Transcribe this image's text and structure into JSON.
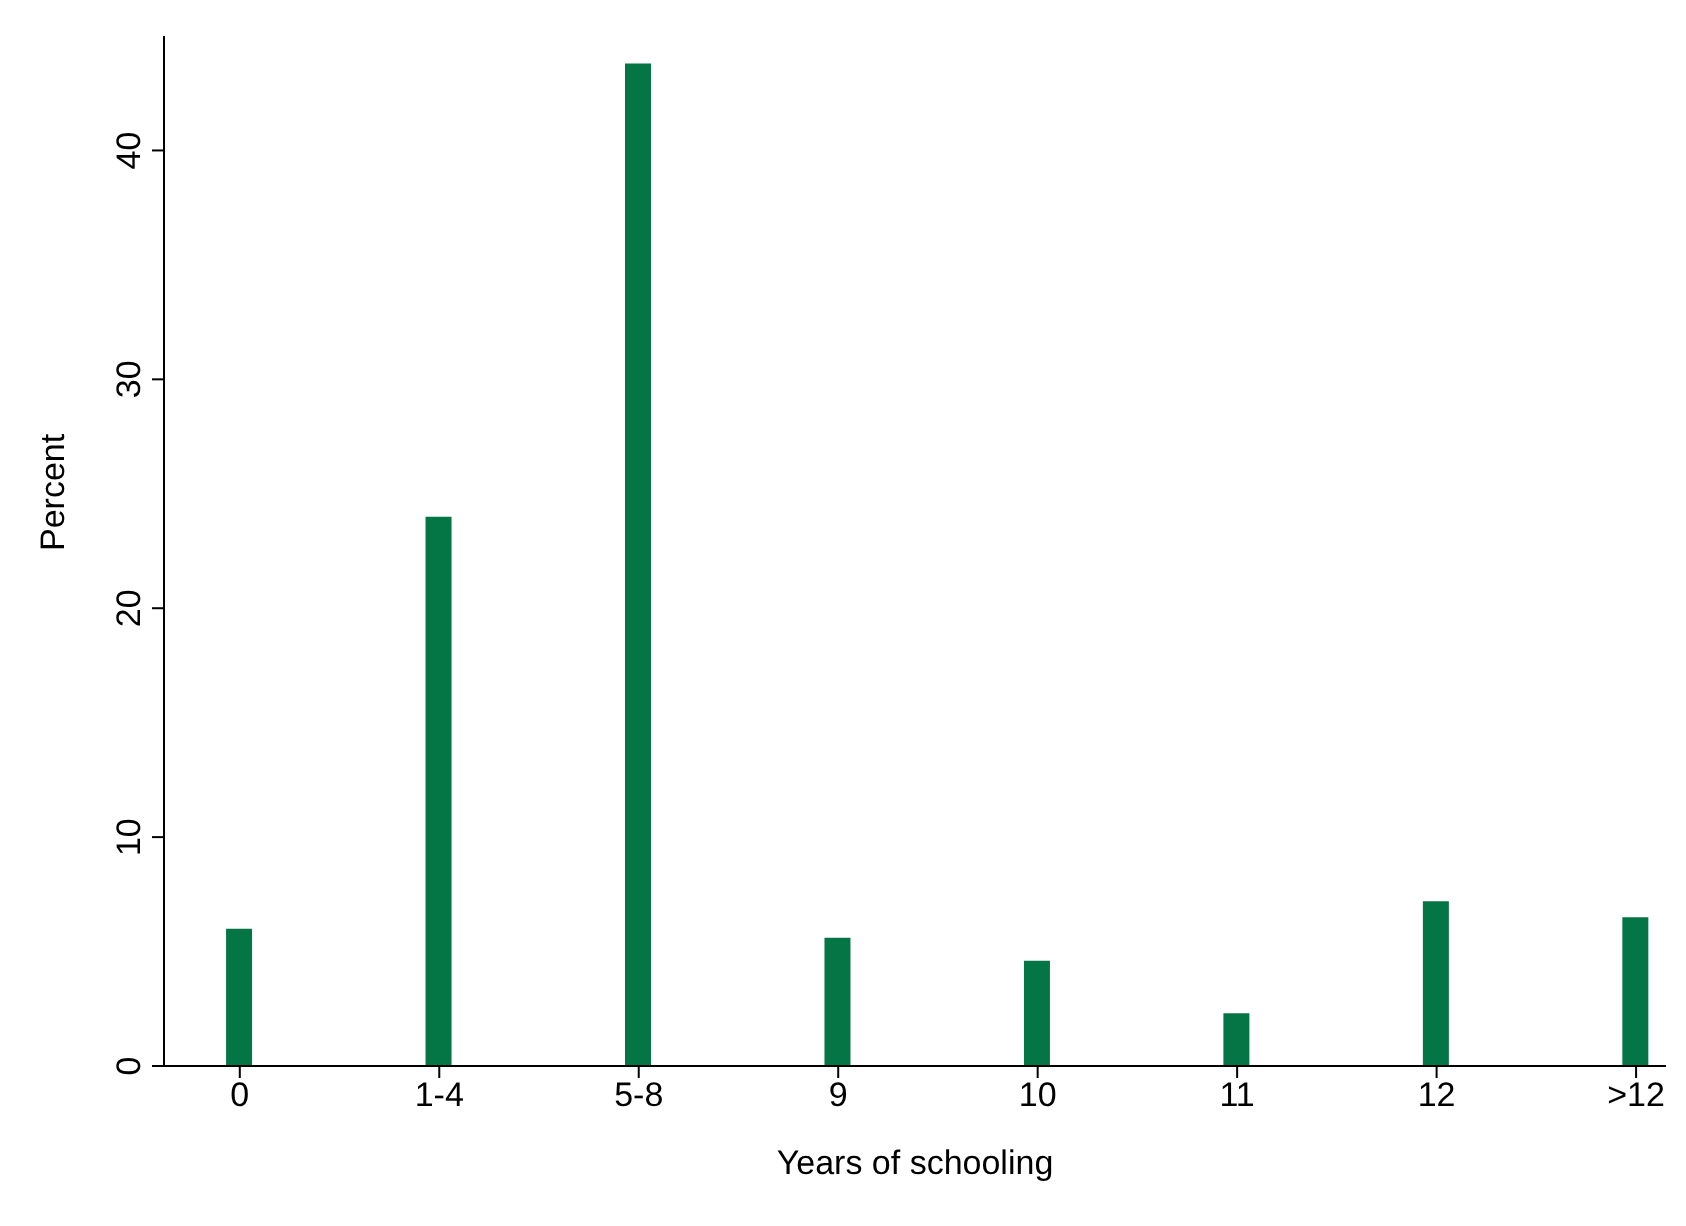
{
  "chart_data": {
    "type": "bar",
    "xlabel": "Years of schooling",
    "ylabel": "Percent",
    "categories": [
      "0",
      "1-4",
      "5-8",
      "9",
      "10",
      "11",
      "12",
      ">12"
    ],
    "values": [
      6.0,
      24.0,
      43.8,
      5.6,
      4.6,
      2.3,
      7.2,
      6.5
    ],
    "color": "#047545",
    "ylim": [
      0,
      45
    ],
    "yticks": [
      0,
      10,
      20,
      30,
      40
    ],
    "grid": false,
    "legend": false
  }
}
